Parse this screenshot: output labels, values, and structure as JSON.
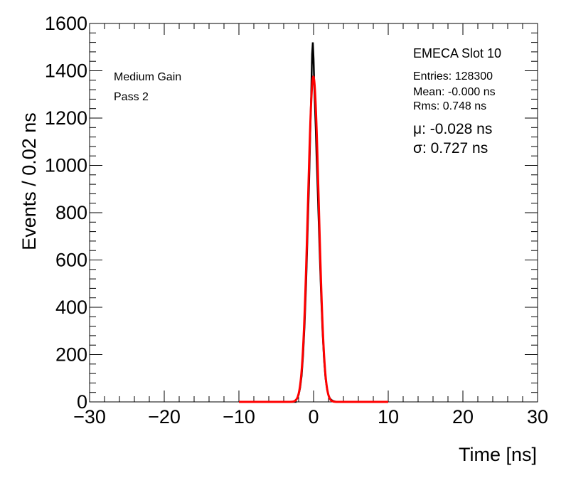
{
  "chart_data": {
    "type": "line",
    "xlabel": "Time [ns]",
    "ylabel": "Events / 0.02 ns",
    "xlim": [
      -30,
      30
    ],
    "ylim": [
      0,
      1600
    ],
    "x_ticks": [
      -30,
      -20,
      -10,
      0,
      10,
      20,
      30
    ],
    "x_tick_labels": [
      "−30",
      "−20",
      "−10",
      "0",
      "10",
      "20",
      "30"
    ],
    "y_ticks": [
      0,
      200,
      400,
      600,
      800,
      1000,
      1200,
      1400,
      1600
    ],
    "y_tick_labels": [
      "0",
      "200",
      "400",
      "600",
      "800",
      "1000",
      "1200",
      "1400",
      "1600"
    ],
    "grid": false,
    "annotations": {
      "gain": "Medium Gain",
      "pass": "Pass 2",
      "slot": "EMECA Slot 10",
      "entries": "Entries: 128300",
      "mean": "Mean: -0.000 ns",
      "rms": "Rms: 0.748 ns",
      "mu": "μ: -0.028 ns",
      "sigma": "σ: 0.727 ns"
    },
    "series": [
      {
        "type": "histogram",
        "color": "#000000",
        "x": [
          -2.4,
          -2.2,
          -2.0,
          -1.8,
          -1.6,
          -1.4,
          -1.2,
          -1.0,
          -0.8,
          -0.6,
          -0.5,
          -0.4,
          -0.3,
          -0.2,
          -0.1,
          0.0,
          0.1,
          0.2,
          0.3,
          0.4,
          0.5,
          0.6,
          0.8,
          1.0,
          1.2,
          1.4,
          1.6,
          1.8,
          2.0,
          2.2,
          2.4,
          2.6
        ],
        "y": [
          8,
          14,
          30,
          60,
          110,
          200,
          330,
          500,
          720,
          930,
          1060,
          1200,
          1320,
          1470,
          1520,
          1450,
          1330,
          1240,
          1150,
          1040,
          950,
          850,
          650,
          460,
          300,
          180,
          100,
          55,
          28,
          14,
          8,
          4
        ]
      },
      {
        "type": "gaussian_fit",
        "color": "#ff0000",
        "x_range": [
          -10,
          10
        ],
        "amplitude": 1375,
        "mean": -0.028,
        "sigma": 0.727
      }
    ]
  }
}
